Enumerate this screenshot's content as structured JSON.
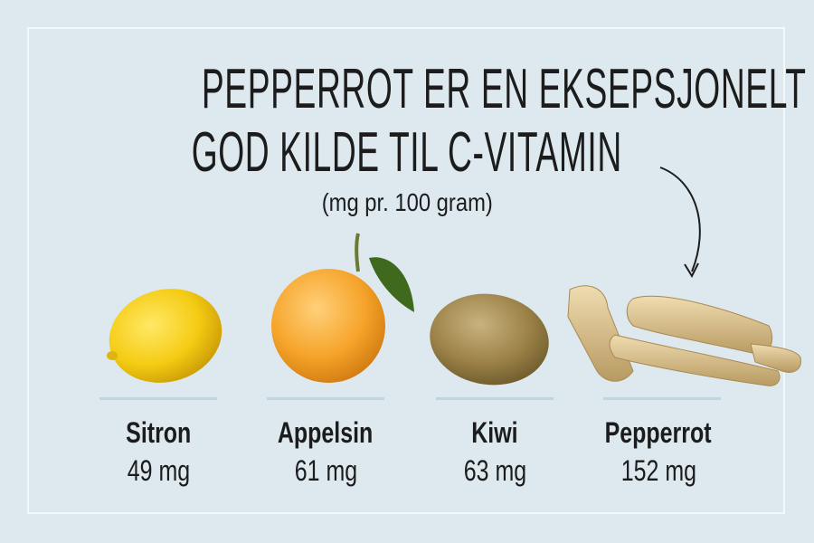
{
  "title_lines": [
    "PEPPERROT ER EN EKSEPSJONELT",
    "GOD KILDE TIL C-VITAMIN"
  ],
  "subtitle": "(mg pr. 100 gram)",
  "items": [
    {
      "name": "Sitron",
      "value": "49 mg",
      "image": "lemon"
    },
    {
      "name": "Appelsin",
      "value": "61 mg",
      "image": "orange"
    },
    {
      "name": "Kiwi",
      "value": "63 mg",
      "image": "kiwi"
    },
    {
      "name": "Pepperrot",
      "value": "152 mg",
      "image": "horseradish"
    }
  ],
  "colors": {
    "background": "#dde9ee",
    "frame": "#f3f8fa",
    "divider": "#bed7da",
    "text": "#1c1c1c"
  }
}
